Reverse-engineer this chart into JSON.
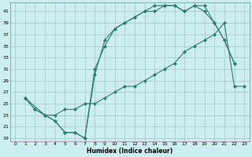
{
  "title": "",
  "xlabel": "Humidex (Indice chaleur)",
  "bg_color": "#cceef0",
  "grid_color": "#aacccc",
  "line_color": "#2e7d6e",
  "xlim": [
    -0.5,
    23.5
  ],
  "ylim": [
    18.5,
    42.5
  ],
  "xticks": [
    0,
    1,
    2,
    3,
    4,
    5,
    6,
    7,
    8,
    9,
    10,
    11,
    12,
    13,
    14,
    15,
    16,
    17,
    18,
    19,
    20,
    21,
    22,
    23
  ],
  "yticks": [
    19,
    21,
    23,
    25,
    27,
    29,
    31,
    33,
    35,
    37,
    39,
    41
  ],
  "line1_x": [
    1,
    2,
    3,
    4,
    5,
    6,
    7,
    8,
    9,
    10,
    11,
    12,
    13,
    14,
    15,
    16,
    17,
    18,
    19,
    20,
    21,
    22
  ],
  "line1_y": [
    26,
    24,
    23,
    22,
    20,
    20,
    19,
    30,
    36,
    38,
    39,
    40,
    41,
    42,
    42,
    42,
    41,
    42,
    42,
    39,
    36,
    32
  ],
  "line2_x": [
    1,
    3,
    4,
    5,
    6,
    7,
    8,
    9,
    10,
    11,
    12,
    13,
    14,
    15,
    16,
    17,
    18,
    19,
    20,
    21,
    22
  ],
  "line2_y": [
    26,
    23,
    22,
    20,
    20,
    19,
    31,
    35,
    38,
    39,
    40,
    41,
    41,
    42,
    42,
    41,
    42,
    41,
    39,
    36,
    32
  ],
  "line3_x": [
    1,
    2,
    3,
    4,
    5,
    6,
    7,
    8,
    9,
    10,
    11,
    12,
    13,
    14,
    15,
    16,
    17,
    18,
    19,
    20,
    21,
    22,
    23
  ],
  "line3_y": [
    26,
    24,
    23,
    23,
    24,
    24,
    25,
    25,
    26,
    27,
    28,
    28,
    29,
    30,
    31,
    32,
    34,
    35,
    36,
    37,
    39,
    28,
    28
  ]
}
